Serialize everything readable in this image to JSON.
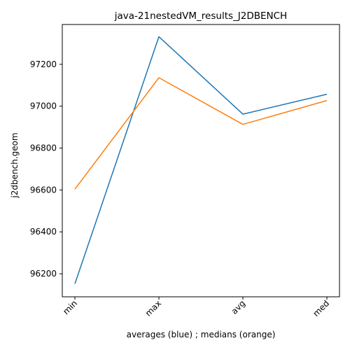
{
  "chart_data": {
    "type": "line",
    "title": "java-21nestedVM_results_J2DBENCH",
    "xlabel": "averages (blue) ; medians (orange)",
    "ylabel": "j2dbench.geom",
    "categories": [
      "min",
      "max",
      "avg",
      "med"
    ],
    "y_ticks": [
      96200,
      96400,
      96600,
      96800,
      97000,
      97200
    ],
    "ylim": [
      96090,
      97390
    ],
    "grid": false,
    "legend": "none",
    "series": [
      {
        "color": "#1f77b4",
        "values": [
          96152,
          97332,
          96962,
          97057
        ]
      },
      {
        "color": "#ff7f0e",
        "values": [
          96604,
          97136,
          96913,
          97027
        ]
      }
    ]
  }
}
